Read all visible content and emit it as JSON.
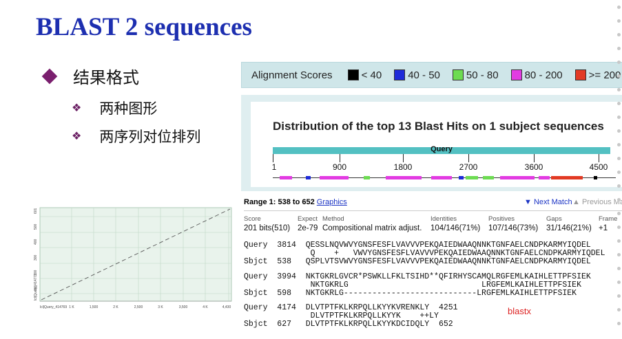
{
  "slide": {
    "title": "BLAST 2 sequences",
    "bullet_main": "结果格式",
    "sub_bullets": [
      "两种图形",
      "两序列对位排列"
    ],
    "annotation": "blastx"
  },
  "dotplot": {
    "y_label": "lcl|Query_414771",
    "x_label": "lcl|Query_414769",
    "y_ticks": [
      "100",
      "200",
      "300",
      "400",
      "500",
      "601"
    ],
    "x_ticks": [
      "1 K",
      "1,500",
      "2 K",
      "2,500",
      "3 K",
      "3,500",
      "4 K",
      "4,430"
    ]
  },
  "graphic": {
    "legend_title": "Alignment Scores",
    "legend": [
      {
        "label": "< 40",
        "color": "#000000"
      },
      {
        "label": "40 - 50",
        "color": "#1f2bd9"
      },
      {
        "label": "50 - 80",
        "color": "#6ddc52"
      },
      {
        "label": "80 - 200",
        "color": "#e23be2"
      },
      {
        "label": ">= 200",
        "color": "#e23a24"
      }
    ],
    "distribution_title": "Distribution of the top 13 Blast Hits on 1 subject sequences",
    "query_label": "Query",
    "ticks": [
      "1",
      "900",
      "1800",
      "2700",
      "3600",
      "4500"
    ]
  },
  "alignment": {
    "range": "Range 1: 538 to 652",
    "graphics_link": "Graphics",
    "next_match": "▼ Next Match",
    "prev_match": "▲ Previous Ma",
    "headers": [
      "Score",
      "Expect",
      "Method",
      "Identities",
      "Positives",
      "Gaps",
      "Frame"
    ],
    "values": [
      "201 bits(510)",
      "2e-79",
      "Compositional matrix adjust.",
      "104/146(71%)",
      "107/146(73%)",
      "31/146(21%)",
      "+1"
    ],
    "blocks": [
      [
        "Query  3814  QESSLNQVWVYGNSFESFLVAVVVPEKQAIEDWAAQNNKTGNFAELCNDPKARMYIQDEL  ",
        "              Q    +   VWVYGNSFESFLVAVVVPEKQAIEDWAAQNNKTGNFAELCNDPKARMYIQDEL",
        "Sbjct  538   QSPLVTSVWVYGNSFESFLVAVVVPEKQAIEDWAAQNNKTGNFAELCNDPKARMYIQDEL  "
      ],
      [
        "Query  3994  NKTGKRLGVCR*PSWKLLFKLTSIHD**QFIRHYSCAMQLRGFEMLKAIHLETTPFSIEK  ",
        "              NKTGKRLG                            LRGFEMLKAIHLETTPFSIEK",
        "Sbjct  598   NKTGKRLG----------------------------LRGFEMLKAIHLETTPFSIEK  "
      ],
      [
        "Query  4174  DLVTPTFKLKRPQLLKYYKVRENKLY  4251",
        "              DLVTPTFKLKRPQLLKYYK    ++LY",
        "Sbjct  627   DLVTPTFKLKRPQLLKYYKDCIDQLY  652"
      ]
    ]
  }
}
